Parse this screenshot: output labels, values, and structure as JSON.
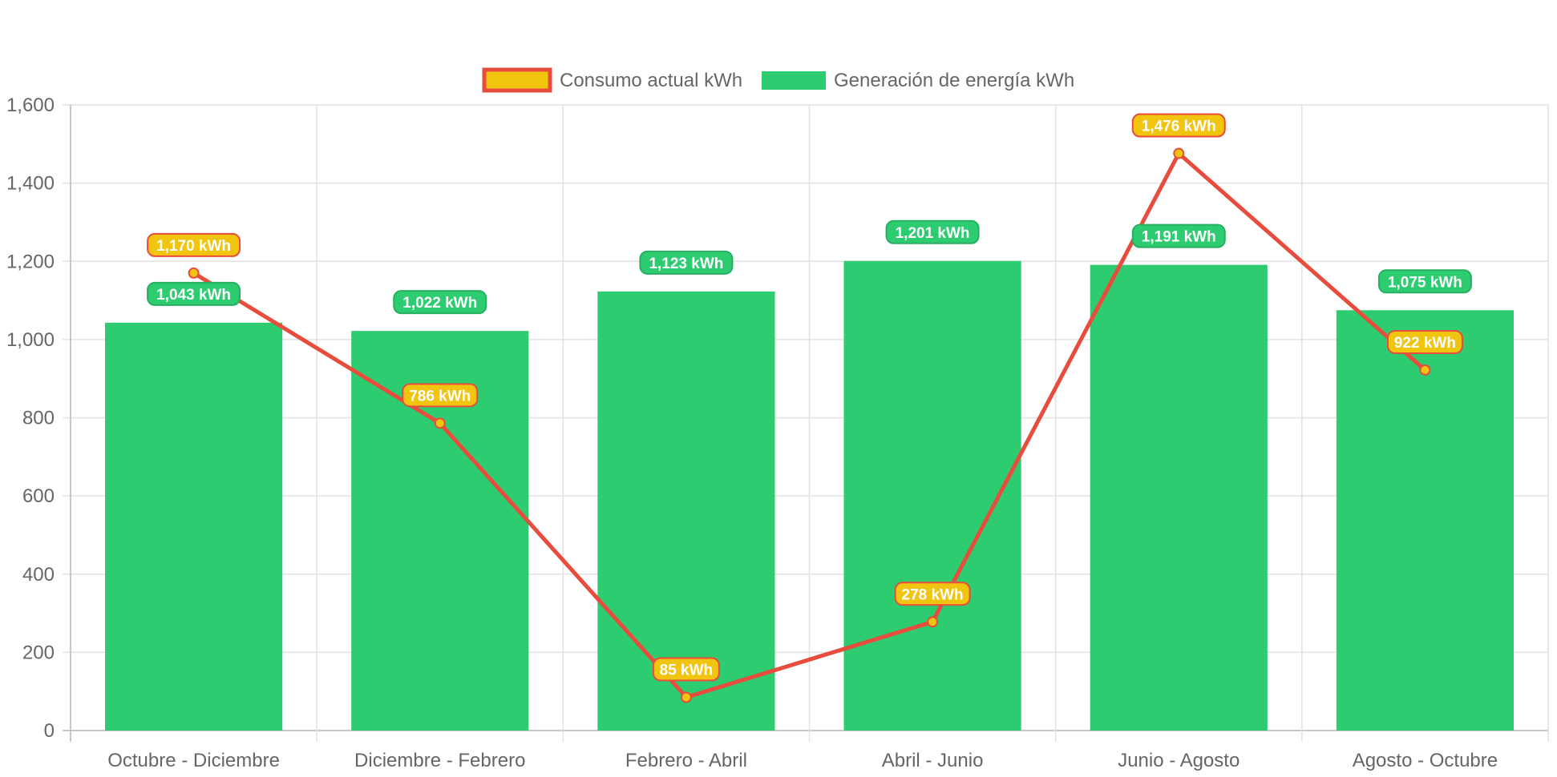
{
  "chart_data": {
    "type": "bar",
    "categories": [
      "Octubre - Diciembre",
      "Diciembre - Febrero",
      "Febrero - Abril",
      "Abril - Junio",
      "Junio - Agosto",
      "Agosto - Octubre"
    ],
    "ylim": [
      0,
      1600
    ],
    "yticks": [
      "0",
      "200",
      "400",
      "600",
      "800",
      "1,000",
      "1,200",
      "1,400",
      "1,600"
    ],
    "grid": true,
    "legend_position": "top-center",
    "series": [
      {
        "name": "Consumo actual kWh",
        "kind": "line",
        "values": [
          1170,
          786,
          85,
          278,
          1476,
          922
        ],
        "labels": [
          "1,170 kWh",
          "786 kWh",
          "85 kWh",
          "278 kWh",
          "1,476 kWh",
          "922 kWh"
        ],
        "color": "#e74c3c",
        "fill": "#f1c40f"
      },
      {
        "name": "Generación de energía kWh",
        "kind": "bar",
        "values": [
          1043,
          1022,
          1123,
          1201,
          1191,
          1075
        ],
        "labels": [
          "1,043 kWh",
          "1,022 kWh",
          "1,123 kWh",
          "1,201 kWh",
          "1,191 kWh",
          "1,075 kWh"
        ],
        "color": "#2ecc71",
        "border": "#27ae60"
      }
    ]
  }
}
